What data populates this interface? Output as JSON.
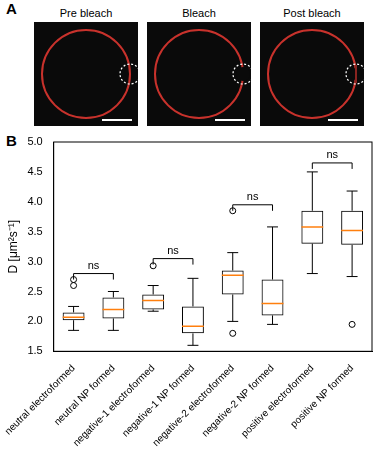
{
  "panel_labels": [
    "A",
    "B"
  ],
  "images": {
    "titles": [
      "Pre bleach",
      "Bleach",
      "Post bleach"
    ]
  },
  "chart_data": {
    "type": "box",
    "y_label": "D [μm²s⁻¹]",
    "categories": [
      "neutral electroformed",
      "neutral NP formed",
      "negative-1 electroformed",
      "negative-1 NP formed",
      "negative-2 electroformed",
      "negative-2 NP formed",
      "positive electroformed",
      "positive NP formed"
    ],
    "boxes": [
      {
        "min": 1.85,
        "q1": 2.02,
        "median": 2.07,
        "q3": 2.15,
        "max": 2.25,
        "outliers": [
          2.6,
          2.7
        ]
      },
      {
        "min": 1.85,
        "q1": 2.05,
        "median": 2.2,
        "q3": 2.4,
        "max": 2.5,
        "outliers": []
      },
      {
        "min": 2.17,
        "q1": 2.2,
        "median": 2.35,
        "q3": 2.45,
        "max": 2.6,
        "outliers": [
          2.93
        ]
      },
      {
        "min": 1.6,
        "q1": 1.8,
        "median": 1.92,
        "q3": 2.25,
        "max": 2.72,
        "outliers": []
      },
      {
        "min": 2.0,
        "q1": 2.45,
        "median": 2.77,
        "q3": 2.85,
        "max": 3.15,
        "outliers": [
          3.85,
          1.8
        ]
      },
      {
        "min": 1.95,
        "q1": 2.1,
        "median": 2.3,
        "q3": 2.7,
        "max": 3.58,
        "outliers": []
      },
      {
        "min": 2.8,
        "q1": 3.3,
        "median": 3.58,
        "q3": 3.85,
        "max": 4.5,
        "outliers": []
      },
      {
        "min": 2.75,
        "q1": 3.28,
        "median": 3.52,
        "q3": 3.85,
        "max": 4.18,
        "outliers": [
          1.95
        ]
      }
    ],
    "color": "#000000",
    "median_color": "#ff7f0e",
    "ylim": [
      1.5,
      5.0
    ],
    "yticks": [
      1.5,
      {
        "value": 2.0,
        "label": "2.0"
      },
      2.5,
      {
        "value": 3.0,
        "label": "3.0"
      },
      3.5,
      {
        "value": 4.0,
        "label": "4.0"
      },
      4.5,
      {
        "value": 5.0,
        "label": "5.0"
      }
    ],
    "grid": false,
    "annotations": [
      {
        "pair": [
          0,
          1
        ],
        "y": 2.8,
        "label": "ns"
      },
      {
        "pair": [
          2,
          3
        ],
        "y": 3.05,
        "label": "ns"
      },
      {
        "pair": [
          4,
          5
        ],
        "y": 3.95,
        "label": "ns"
      },
      {
        "pair": [
          6,
          7
        ],
        "y": 4.65,
        "label": "ns"
      }
    ]
  }
}
